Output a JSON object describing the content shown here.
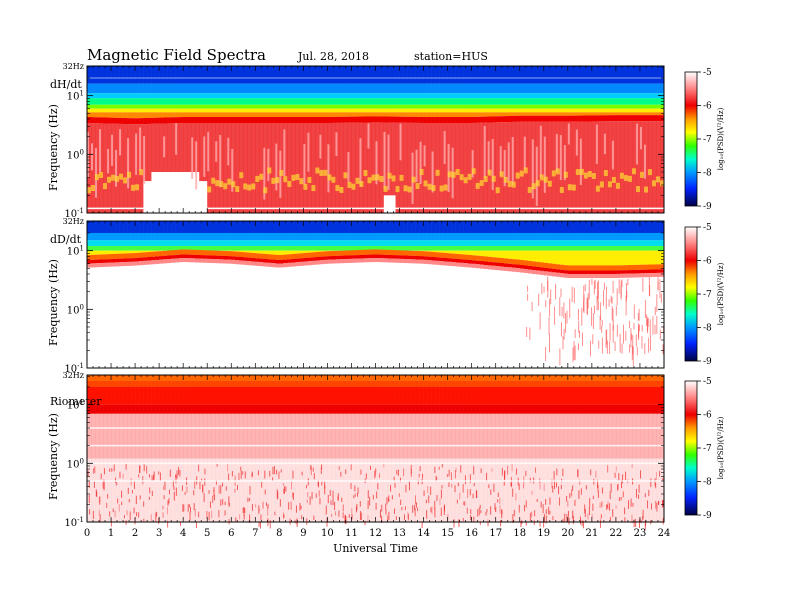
{
  "header": {
    "title": "Magnetic Field Spectra",
    "date": "Jul. 28, 2018",
    "station": "station=HUS"
  },
  "colors": {
    "scale": [
      "#000033",
      "#0000aa",
      "#0055ff",
      "#00aaff",
      "#00ffdd",
      "#00ff55",
      "#66ff00",
      "#ffff00",
      "#ffaa00",
      "#ff3300",
      "#ee0000",
      "#ff6666",
      "#ffbbbb",
      "#ffffff"
    ]
  },
  "chart_data": [
    {
      "type": "heatmap",
      "panel_label": "dH/dt",
      "top_label": "32Hz",
      "ylabel": "Frequency (Hz)",
      "y_ticks": [
        {
          "value": 0.1,
          "base": "10",
          "exp": "-1"
        },
        {
          "value": 1,
          "base": "10",
          "exp": "0"
        },
        {
          "value": 10,
          "base": "10",
          "exp": "1"
        }
      ],
      "y_scale": "log",
      "ylim": [
        0.1,
        32
      ],
      "xlim": [
        0,
        24
      ],
      "colorbar": {
        "label": "log₁₀(PSD)(V²/Hz)",
        "ticks": [
          "-5",
          "-6",
          "-7",
          "-8",
          "-9"
        ],
        "range": [
          -9,
          -5
        ]
      },
      "band_edge_hz": [
        [
          0,
          4
        ],
        [
          2,
          3.8
        ],
        [
          4,
          4
        ],
        [
          6,
          4
        ],
        [
          8,
          4
        ],
        [
          10,
          4
        ],
        [
          12,
          4.1
        ],
        [
          14,
          4
        ],
        [
          16,
          4
        ],
        [
          18,
          4.2
        ],
        [
          20,
          4.2
        ],
        [
          22,
          4.3
        ],
        [
          24,
          4.3
        ]
      ]
    },
    {
      "type": "heatmap",
      "panel_label": "dD/dt",
      "top_label": "32Hz",
      "ylabel": "Frequency (Hz)",
      "y_ticks": [
        {
          "value": 0.1,
          "base": "10",
          "exp": "-1"
        },
        {
          "value": 1,
          "base": "10",
          "exp": "0"
        },
        {
          "value": 10,
          "base": "10",
          "exp": "1"
        }
      ],
      "y_scale": "log",
      "ylim": [
        0.1,
        32
      ],
      "xlim": [
        0,
        24
      ],
      "colorbar": {
        "label": "log₁₀(PSD)(V²/Hz)",
        "ticks": [
          "-5",
          "-6",
          "-7",
          "-8",
          "-9"
        ],
        "range": [
          -9,
          -5
        ]
      },
      "band_edge_hz": [
        [
          0,
          6
        ],
        [
          2,
          6.5
        ],
        [
          4,
          7.5
        ],
        [
          6,
          7
        ],
        [
          8,
          6
        ],
        [
          10,
          7
        ],
        [
          12,
          7.5
        ],
        [
          14,
          7
        ],
        [
          16,
          6
        ],
        [
          18,
          5
        ],
        [
          20,
          4
        ],
        [
          22,
          4
        ],
        [
          24,
          4.2
        ]
      ]
    },
    {
      "type": "heatmap",
      "panel_label": "Riometer",
      "top_label": "32Hz",
      "ylabel": "Frequency (Hz)",
      "y_ticks": [
        {
          "value": 0.1,
          "base": "10",
          "exp": "-1"
        },
        {
          "value": 1,
          "base": "10",
          "exp": "0"
        },
        {
          "value": 10,
          "base": "10",
          "exp": "1"
        }
      ],
      "y_scale": "log",
      "ylim": [
        0.1,
        32
      ],
      "xlim": [
        0,
        24
      ],
      "xlabel": "Universal Time",
      "x_ticks": [
        "0",
        "1",
        "2",
        "3",
        "4",
        "5",
        "6",
        "7",
        "8",
        "9",
        "10",
        "11",
        "12",
        "13",
        "14",
        "15",
        "16",
        "17",
        "18",
        "19",
        "20",
        "21",
        "22",
        "23",
        "24"
      ],
      "colorbar": {
        "label": "log₁₀(PSD)(V²/Hz)",
        "ticks": [
          "-5",
          "-6",
          "-7",
          "-8",
          "-9"
        ],
        "range": [
          -9,
          -5
        ]
      },
      "band_edge_hz": [
        [
          0,
          8
        ],
        [
          24,
          8
        ]
      ]
    }
  ]
}
